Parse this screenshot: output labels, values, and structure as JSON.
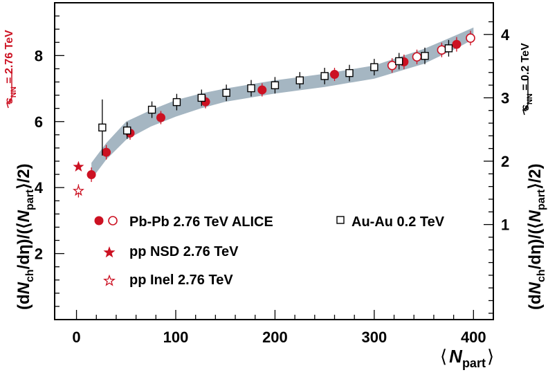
{
  "chart_data": {
    "type": "scatter",
    "x_axis": {
      "label_prefix": "⟨",
      "label_main": "N",
      "label_sub": "part",
      "label_suffix": "⟩",
      "range": [
        -22,
        420
      ],
      "ticks": [
        0,
        100,
        200,
        300,
        400
      ]
    },
    "y_left": {
      "label_lead": "(d",
      "label_N": "N",
      "label_ch": "ch",
      "label_mid": "/dη)/(⟨",
      "label_N2": "N",
      "label_part": "part",
      "label_tail": "⟩/2)",
      "range": [
        0,
        9.6
      ],
      "ticks": [
        2,
        4,
        6,
        8
      ]
    },
    "y_right": {
      "label_lead": "(d",
      "label_N": "N",
      "label_ch": "ch",
      "label_mid": "/dη)/(⟨",
      "label_N2": "N",
      "label_part": "part",
      "label_tail": "⟩/2)",
      "range": [
        -0.5,
        4.5
      ],
      "ticks": [
        1,
        2,
        3,
        4
      ]
    },
    "energy_labels": {
      "left_s": "s",
      "left_sub": "NN",
      "left_value": " = 2.76 TeV",
      "right_s": "s",
      "right_sub": "NN",
      "right_value": " = 0.2 TeV"
    },
    "band": {
      "name": "model band",
      "color": "#a5b6c2",
      "x": [
        15,
        30,
        50,
        75,
        100,
        125,
        150,
        200,
        250,
        300,
        350,
        385,
        400
      ],
      "low": [
        4.25,
        4.85,
        5.45,
        5.85,
        6.15,
        6.4,
        6.6,
        6.85,
        7.05,
        7.3,
        7.75,
        8.25,
        8.5
      ],
      "high": [
        4.75,
        5.35,
        6.0,
        6.35,
        6.65,
        6.85,
        7.0,
        7.25,
        7.45,
        7.7,
        8.2,
        8.65,
        8.85
      ]
    },
    "series": [
      {
        "name": "Pb-Pb 2.76 TeV ALICE (filled)",
        "marker": "circle-filled",
        "color": "#cc1122",
        "points": [
          {
            "x": 15,
            "y": 4.39,
            "err": 0.22
          },
          {
            "x": 30,
            "y": 5.07,
            "err": 0.22
          },
          {
            "x": 54,
            "y": 5.65,
            "err": 0.2
          },
          {
            "x": 85,
            "y": 6.12,
            "err": 0.2
          },
          {
            "x": 130,
            "y": 6.6,
            "err": 0.2
          },
          {
            "x": 187,
            "y": 6.96,
            "err": 0.2
          },
          {
            "x": 260,
            "y": 7.43,
            "err": 0.2
          },
          {
            "x": 330,
            "y": 7.81,
            "err": 0.22
          },
          {
            "x": 383,
            "y": 8.34,
            "err": 0.22
          }
        ]
      },
      {
        "name": "Pb-Pb 2.76 TeV ALICE (open)",
        "marker": "circle-open",
        "color": "#cc1122",
        "points": [
          {
            "x": 318,
            "y": 7.7,
            "err": 0.22
          },
          {
            "x": 343,
            "y": 7.96,
            "err": 0.22
          },
          {
            "x": 368,
            "y": 8.17,
            "err": 0.22
          },
          {
            "x": 397,
            "y": 8.53,
            "err": 0.22
          }
        ]
      },
      {
        "name": "Au-Au 0.2 TeV",
        "marker": "square-open",
        "color": "#000000",
        "points": [
          {
            "x": 26,
            "y": 5.82,
            "err": 0.85
          },
          {
            "x": 51,
            "y": 5.73,
            "err": 0.25
          },
          {
            "x": 76,
            "y": 6.36,
            "err": 0.25
          },
          {
            "x": 101,
            "y": 6.59,
            "err": 0.25
          },
          {
            "x": 126,
            "y": 6.72,
            "err": 0.25
          },
          {
            "x": 151,
            "y": 6.87,
            "err": 0.25
          },
          {
            "x": 176,
            "y": 7.01,
            "err": 0.25
          },
          {
            "x": 200,
            "y": 7.1,
            "err": 0.25
          },
          {
            "x": 225,
            "y": 7.25,
            "err": 0.25
          },
          {
            "x": 250,
            "y": 7.38,
            "err": 0.25
          },
          {
            "x": 275,
            "y": 7.47,
            "err": 0.25
          },
          {
            "x": 300,
            "y": 7.65,
            "err": 0.25
          },
          {
            "x": 325,
            "y": 7.83,
            "err": 0.25
          },
          {
            "x": 351,
            "y": 7.99,
            "err": 0.25
          },
          {
            "x": 375,
            "y": 8.22,
            "err": 0.25
          }
        ]
      },
      {
        "name": "pp NSD 2.76 TeV",
        "marker": "star-filled",
        "color": "#cc1122",
        "points": [
          {
            "x": 2,
            "y": 4.63,
            "err": 0.0
          }
        ]
      },
      {
        "name": "pp Inel 2.76 TeV",
        "marker": "star-open",
        "color": "#cc1122",
        "points": [
          {
            "x": 2,
            "y": 3.9,
            "err": 0.2
          }
        ]
      }
    ],
    "legend": {
      "pbpb": "Pb-Pb 2.76 TeV ALICE",
      "auau": "Au-Au  0.2 TeV",
      "ppnsd": "pp NSD 2.76 TeV",
      "ppinel": "pp Inel 2.76 TeV"
    },
    "colors": {
      "red": "#cc1122",
      "black": "#000000"
    }
  }
}
